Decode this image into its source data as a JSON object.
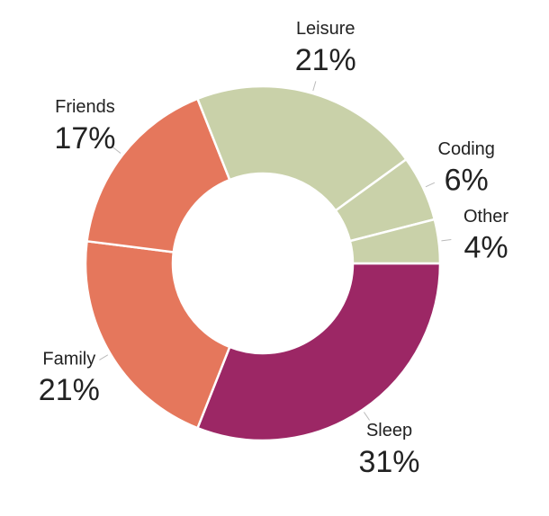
{
  "chart_data": {
    "type": "donut",
    "categories": [
      "Sleep",
      "Family",
      "Friends",
      "Leisure",
      "Coding",
      "Other"
    ],
    "values": [
      31,
      21,
      17,
      21,
      6,
      4
    ],
    "value_labels": [
      "31%",
      "21%",
      "17%",
      "21%",
      "6%",
      "4%"
    ],
    "colors": [
      "#9c2765",
      "#e5775c",
      "#e5775c",
      "#c9d1a9",
      "#c9d1a9",
      "#c9d1a9"
    ]
  }
}
